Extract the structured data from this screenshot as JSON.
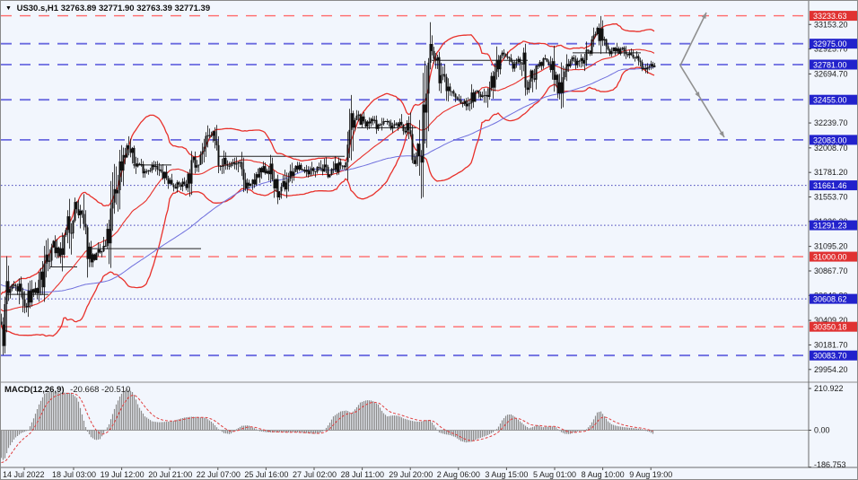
{
  "header": {
    "dropdown_icon": "▼",
    "symbol_period": "US30.s,H1",
    "ohlc": "32763.89 32771.90 32763.39 32771.39"
  },
  "macd_panel": {
    "label": "MACD(12,26,9)",
    "values": "-20.668 -20.510",
    "scale_labels": [
      "210.922",
      "0.00",
      "-186.753"
    ],
    "scale_values": [
      210.922,
      0.0,
      -186.753
    ]
  },
  "colors": {
    "background": "#f2f6fd",
    "candle": "#111111",
    "band_red": "#e8302a",
    "ma_blue": "#7070dd",
    "level_blue_line": "#6a6ae0",
    "level_blue_dot": "#4444bb",
    "level_red_line": "#ff6a6a",
    "label_blue_box": "#2222cc",
    "label_red_box": "#e03232",
    "macd_bar": "#8c8c8c",
    "macd_signal": "#e04040",
    "arrow_gray": "#909090",
    "axis_text": "#1a1a1a"
  },
  "chart_data": {
    "type": "candlestick+macd",
    "instrument": "US30.s",
    "timeframe": "H1",
    "last_ohlc": {
      "open": 32763.89,
      "high": 32771.9,
      "low": 32763.39,
      "close": 32771.39
    },
    "price_axis_ticks": [
      33153.2,
      32925.7,
      32694.7,
      32239.7,
      32008.7,
      31781.2,
      31553.7,
      31326.2,
      31095.2,
      30867.7,
      30640.2,
      30409.2,
      30181.7,
      29954.2
    ],
    "levels": [
      {
        "price": 33233.63,
        "label": "33233.63",
        "style": "dash",
        "color": "red"
      },
      {
        "price": 32975.0,
        "label": "32975.00",
        "style": "dash",
        "color": "blue"
      },
      {
        "price": 32781.0,
        "label": "32781.00",
        "style": "dash",
        "color": "blue"
      },
      {
        "price": 32455.0,
        "label": "32455.00",
        "style": "dash",
        "color": "blue"
      },
      {
        "price": 32083.0,
        "label": "32083.00",
        "style": "dash",
        "color": "blue"
      },
      {
        "price": 31661.46,
        "label": "31661.46",
        "style": "dot",
        "color": "blue"
      },
      {
        "price": 31291.23,
        "label": "31291.23",
        "style": "dot",
        "color": "blue"
      },
      {
        "price": 31000.0,
        "label": "31000.00",
        "style": "dash",
        "color": "red"
      },
      {
        "price": 30608.62,
        "label": "30608.62",
        "style": "dot",
        "color": "blue"
      },
      {
        "price": 30350.18,
        "label": "30350.18",
        "style": "dash",
        "color": "red"
      },
      {
        "price": 30083.7,
        "label": "30083.70",
        "style": "dash",
        "color": "blue"
      }
    ],
    "time_axis": [
      "14 Jul 2022",
      "18 Jul 03:00",
      "19 Jul 12:00",
      "20 Jul 21:00",
      "22 Jul 07:00",
      "25 Jul 16:00",
      "27 Jul 02:00",
      "28 Jul 11:00",
      "29 Jul 20:00",
      "2 Aug 06:00",
      "3 Aug 15:00",
      "5 Aug 01:00",
      "8 Aug 10:00",
      "9 Aug 19:00"
    ],
    "price_path": [
      [
        0,
        30420
      ],
      [
        2,
        30260
      ],
      [
        5,
        30600
      ],
      [
        10,
        30690
      ],
      [
        16,
        30730
      ],
      [
        22,
        30660
      ],
      [
        27,
        30500
      ],
      [
        33,
        30680
      ],
      [
        40,
        30690
      ],
      [
        46,
        30780
      ],
      [
        52,
        31020
      ],
      [
        58,
        31110
      ],
      [
        64,
        30980
      ],
      [
        70,
        31100
      ],
      [
        76,
        31300
      ],
      [
        82,
        31480
      ],
      [
        87,
        31380
      ],
      [
        92,
        31230
      ],
      [
        97,
        31060
      ],
      [
        103,
        30980
      ],
      [
        110,
        31030
      ],
      [
        117,
        31090
      ],
      [
        123,
        31330
      ],
      [
        129,
        31700
      ],
      [
        136,
        31960
      ],
      [
        141,
        32040
      ],
      [
        147,
        31880
      ],
      [
        154,
        31850
      ],
      [
        161,
        31800
      ],
      [
        168,
        31840
      ],
      [
        175,
        31790
      ],
      [
        182,
        31740
      ],
      [
        189,
        31690
      ],
      [
        196,
        31660
      ],
      [
        202,
        31670
      ],
      [
        208,
        31720
      ],
      [
        215,
        31870
      ],
      [
        222,
        31960
      ],
      [
        229,
        32050
      ],
      [
        235,
        32150
      ],
      [
        240,
        31990
      ],
      [
        246,
        31890
      ],
      [
        252,
        31840
      ],
      [
        259,
        31880
      ],
      [
        266,
        31800
      ],
      [
        272,
        31690
      ],
      [
        278,
        31650
      ],
      [
        284,
        31720
      ],
      [
        291,
        31790
      ],
      [
        298,
        31820
      ],
      [
        305,
        31650
      ],
      [
        311,
        31570
      ],
      [
        317,
        31700
      ],
      [
        324,
        31790
      ],
      [
        331,
        31830
      ],
      [
        338,
        31800
      ],
      [
        345,
        31780
      ],
      [
        352,
        31860
      ],
      [
        359,
        31810
      ],
      [
        366,
        31760
      ],
      [
        373,
        31830
      ],
      [
        380,
        31850
      ],
      [
        386,
        31870
      ],
      [
        390,
        32120
      ],
      [
        394,
        32360
      ],
      [
        399,
        32300
      ],
      [
        406,
        32210
      ],
      [
        413,
        32260
      ],
      [
        420,
        32210
      ],
      [
        427,
        32260
      ],
      [
        434,
        32210
      ],
      [
        441,
        32260
      ],
      [
        448,
        32160
      ],
      [
        454,
        32210
      ],
      [
        459,
        31990
      ],
      [
        463,
        31900
      ],
      [
        467,
        32060
      ],
      [
        471,
        32300
      ],
      [
        475,
        32650
      ],
      [
        479,
        32900
      ],
      [
        483,
        32820
      ],
      [
        488,
        32700
      ],
      [
        494,
        32620
      ],
      [
        500,
        32540
      ],
      [
        506,
        32470
      ],
      [
        512,
        32430
      ],
      [
        518,
        32420
      ],
      [
        524,
        32470
      ],
      [
        530,
        32520
      ],
      [
        536,
        32480
      ],
      [
        542,
        32560
      ],
      [
        548,
        32650
      ],
      [
        553,
        32790
      ],
      [
        558,
        32860
      ],
      [
        564,
        32800
      ],
      [
        570,
        32770
      ],
      [
        576,
        32820
      ],
      [
        582,
        32760
      ],
      [
        587,
        32560
      ],
      [
        592,
        32700
      ],
      [
        598,
        32780
      ],
      [
        604,
        32820
      ],
      [
        610,
        32780
      ],
      [
        615,
        32740
      ],
      [
        620,
        32520
      ],
      [
        625,
        32700
      ],
      [
        630,
        32790
      ],
      [
        636,
        32830
      ],
      [
        642,
        32790
      ],
      [
        648,
        32840
      ],
      [
        653,
        32900
      ],
      [
        658,
        33000
      ],
      [
        663,
        33120
      ],
      [
        667,
        33060
      ],
      [
        672,
        32960
      ],
      [
        677,
        32900
      ],
      [
        682,
        32950
      ],
      [
        687,
        32900
      ],
      [
        692,
        32920
      ],
      [
        697,
        32880
      ],
      [
        702,
        32850
      ],
      [
        707,
        32820
      ],
      [
        712,
        32790
      ],
      [
        717,
        32760
      ],
      [
        721,
        32790
      ],
      [
        725,
        32800
      ],
      [
        729,
        32771
      ]
    ],
    "level_segments": [
      [
        6,
        53,
        30650
      ],
      [
        55,
        85,
        30905
      ],
      [
        98,
        223,
        31075
      ],
      [
        147,
        190,
        31850
      ],
      [
        243,
        383,
        31930
      ],
      [
        397,
        463,
        32195
      ],
      [
        480,
        587,
        32820
      ],
      [
        637,
        713,
        32890
      ]
    ],
    "arrows": {
      "up": [
        [
          757,
          72
        ],
        [
          786,
          13
        ]
      ],
      "down": [
        [
          757,
          72
        ],
        [
          806,
          152
        ]
      ],
      "down_mid_head": [
        779,
        108
      ]
    },
    "macd": {
      "value": -20.668,
      "signal": -20.51,
      "path": [
        [
          0,
          -140
        ],
        [
          3,
          -155
        ],
        [
          8,
          -90
        ],
        [
          15,
          -40
        ],
        [
          22,
          -15
        ],
        [
          30,
          0
        ],
        [
          36,
          60
        ],
        [
          42,
          130
        ],
        [
          48,
          185
        ],
        [
          55,
          195
        ],
        [
          62,
          192
        ],
        [
          70,
          190
        ],
        [
          78,
          188
        ],
        [
          85,
          160
        ],
        [
          90,
          80
        ],
        [
          95,
          0
        ],
        [
          100,
          -35
        ],
        [
          105,
          -50
        ],
        [
          110,
          -45
        ],
        [
          115,
          -10
        ],
        [
          120,
          30
        ],
        [
          127,
          120
        ],
        [
          133,
          180
        ],
        [
          140,
          210
        ],
        [
          147,
          190
        ],
        [
          153,
          120
        ],
        [
          160,
          70
        ],
        [
          168,
          45
        ],
        [
          175,
          40
        ],
        [
          182,
          42
        ],
        [
          190,
          45
        ],
        [
          197,
          55
        ],
        [
          205,
          65
        ],
        [
          212,
          68
        ],
        [
          220,
          66
        ],
        [
          228,
          62
        ],
        [
          235,
          40
        ],
        [
          242,
          5
        ],
        [
          248,
          -15
        ],
        [
          255,
          -20
        ],
        [
          262,
          5
        ],
        [
          268,
          22
        ],
        [
          275,
          25
        ],
        [
          282,
          10
        ],
        [
          288,
          -5
        ],
        [
          295,
          -10
        ],
        [
          302,
          -12
        ],
        [
          310,
          -10
        ],
        [
          318,
          -12
        ],
        [
          325,
          -10
        ],
        [
          332,
          -12
        ],
        [
          340,
          -15
        ],
        [
          348,
          -18
        ],
        [
          355,
          -15
        ],
        [
          360,
          0
        ],
        [
          365,
          30
        ],
        [
          370,
          70
        ],
        [
          378,
          95
        ],
        [
          385,
          100
        ],
        [
          390,
          85
        ],
        [
          395,
          110
        ],
        [
          400,
          140
        ],
        [
          407,
          152
        ],
        [
          413,
          150
        ],
        [
          420,
          130
        ],
        [
          425,
          90
        ],
        [
          430,
          70
        ],
        [
          437,
          75
        ],
        [
          443,
          72
        ],
        [
          448,
          60
        ],
        [
          455,
          50
        ],
        [
          460,
          45
        ],
        [
          467,
          42
        ],
        [
          472,
          50
        ],
        [
          478,
          52
        ],
        [
          483,
          20
        ],
        [
          488,
          -12
        ],
        [
          494,
          -20
        ],
        [
          500,
          -25
        ],
        [
          506,
          -35
        ],
        [
          512,
          -55
        ],
        [
          518,
          -62
        ],
        [
          524,
          -58
        ],
        [
          530,
          -45
        ],
        [
          536,
          -35
        ],
        [
          542,
          -25
        ],
        [
          548,
          -10
        ],
        [
          553,
          10
        ],
        [
          558,
          50
        ],
        [
          563,
          78
        ],
        [
          568,
          80
        ],
        [
          573,
          65
        ],
        [
          578,
          45
        ],
        [
          583,
          25
        ],
        [
          588,
          10
        ],
        [
          593,
          18
        ],
        [
          598,
          25
        ],
        [
          603,
          15
        ],
        [
          608,
          18
        ],
        [
          613,
          20
        ],
        [
          618,
          15
        ],
        [
          623,
          -8
        ],
        [
          628,
          -18
        ],
        [
          633,
          -20
        ],
        [
          638,
          -12
        ],
        [
          643,
          -5
        ],
        [
          648,
          -3
        ],
        [
          652,
          5
        ],
        [
          656,
          25
        ],
        [
          660,
          55
        ],
        [
          664,
          90
        ],
        [
          668,
          95
        ],
        [
          672,
          70
        ],
        [
          676,
          45
        ],
        [
          680,
          30
        ],
        [
          685,
          22
        ],
        [
          690,
          18
        ],
        [
          695,
          15
        ],
        [
          700,
          12
        ],
        [
          705,
          10
        ],
        [
          710,
          8
        ],
        [
          714,
          5
        ],
        [
          718,
          -3
        ],
        [
          722,
          -8
        ],
        [
          726,
          -18
        ]
      ]
    }
  }
}
